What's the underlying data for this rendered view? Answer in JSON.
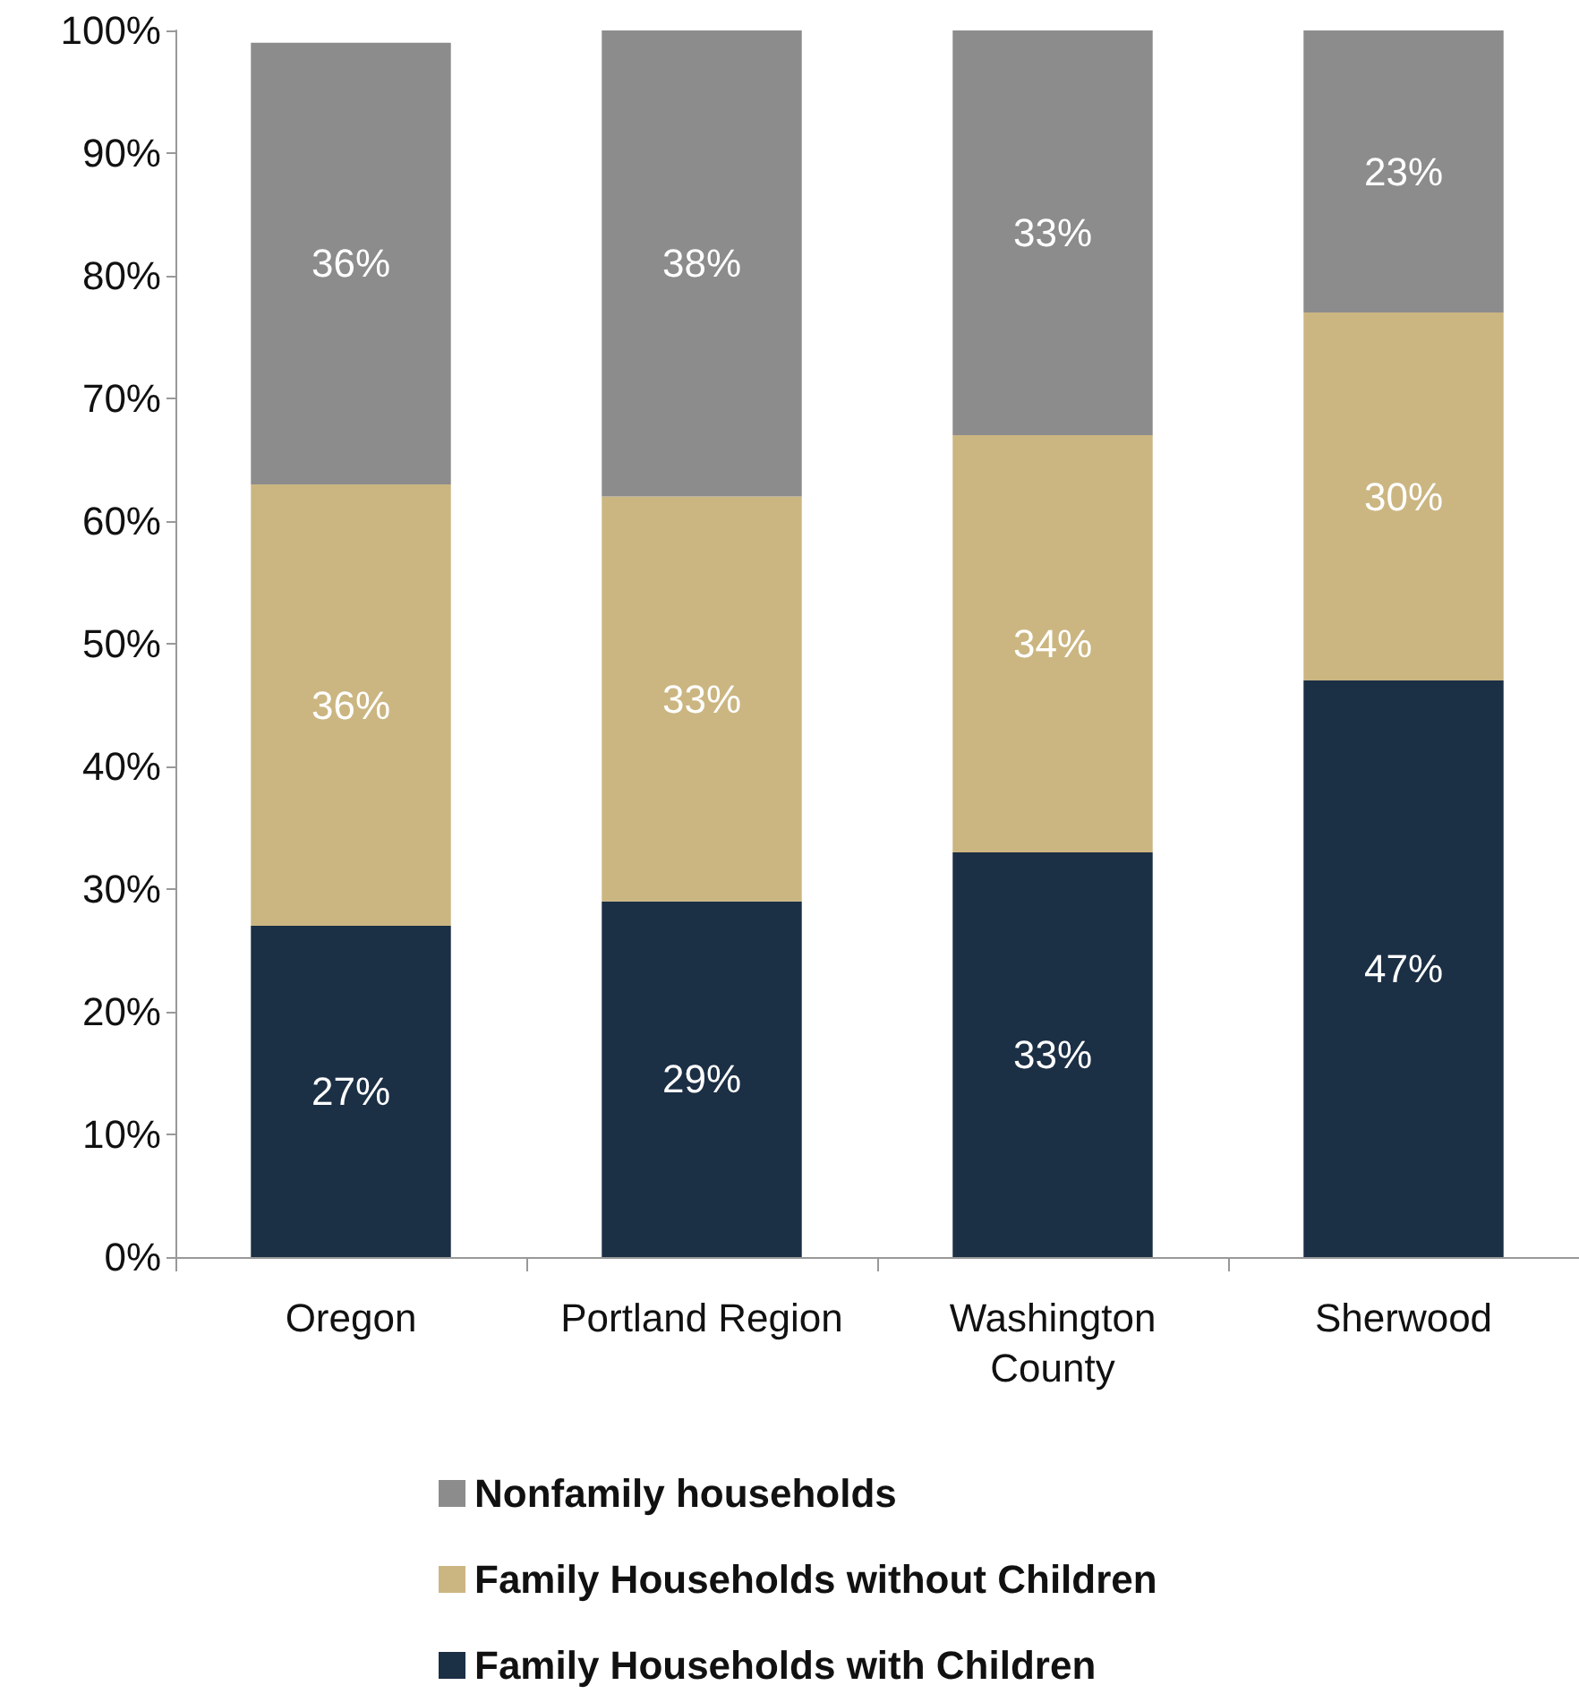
{
  "chart_data": {
    "type": "bar",
    "stacked": true,
    "categories": [
      "Oregon",
      "Portland Region",
      "Washington County",
      "Sherwood"
    ],
    "series": [
      {
        "name": "Family Households with Children",
        "color": "#1b2f45",
        "values": [
          27,
          29,
          33,
          47
        ],
        "value_labels": [
          "27%",
          "29%",
          "33%",
          "47%"
        ]
      },
      {
        "name": "Family Households without Children",
        "color": "#cbb682",
        "values": [
          36,
          33,
          34,
          30
        ],
        "value_labels": [
          "36%",
          "33%",
          "34%",
          "30%"
        ]
      },
      {
        "name": "Nonfamily households",
        "color": "#8c8c8c",
        "values": [
          36,
          38,
          33,
          23
        ],
        "value_labels": [
          "36%",
          "38%",
          "33%",
          "23%"
        ]
      }
    ],
    "ylim": [
      0,
      100
    ],
    "yticks": [
      {
        "value": 0,
        "label": "0%"
      },
      {
        "value": 10,
        "label": "10%"
      },
      {
        "value": 20,
        "label": "20%"
      },
      {
        "value": 30,
        "label": "30%"
      },
      {
        "value": 40,
        "label": "40%"
      },
      {
        "value": 50,
        "label": "50%"
      },
      {
        "value": 60,
        "label": "60%"
      },
      {
        "value": 70,
        "label": "70%"
      },
      {
        "value": 80,
        "label": "80%"
      },
      {
        "value": 90,
        "label": "90%"
      },
      {
        "value": 100,
        "label": "100%"
      }
    ],
    "grid": false,
    "legend": "bottom"
  }
}
